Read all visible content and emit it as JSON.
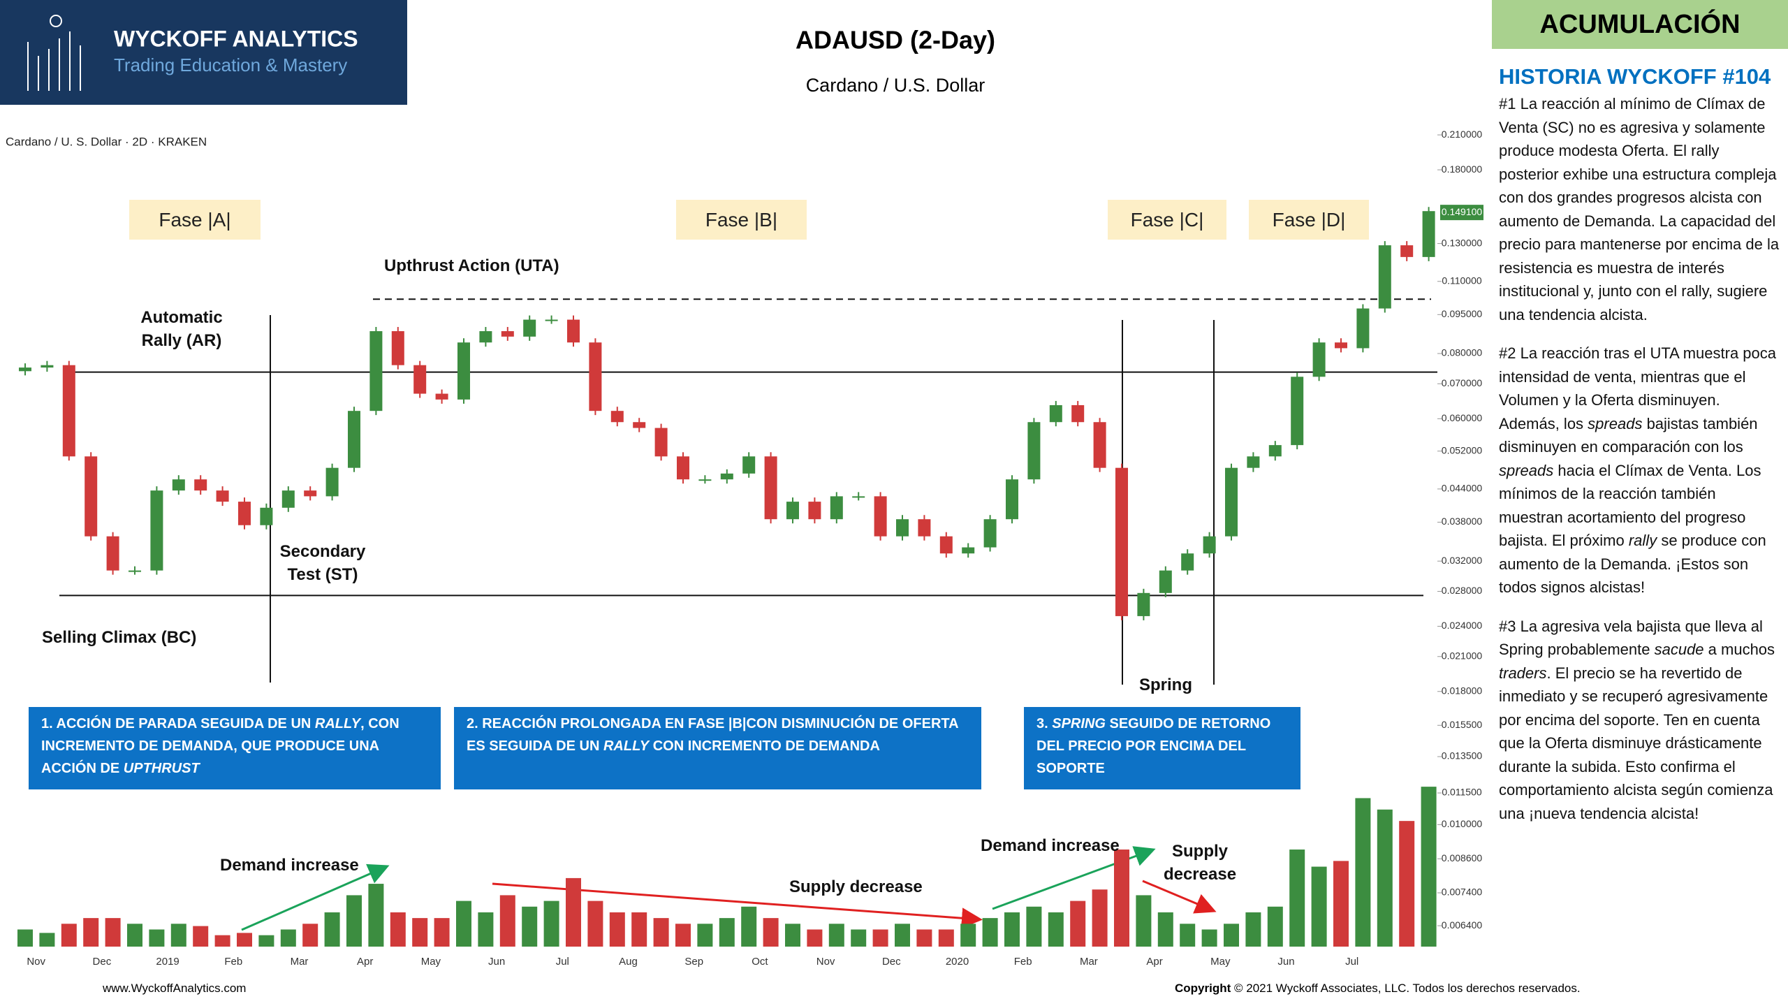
{
  "header": {
    "brand": "WYCKOFF ANALYTICS",
    "tagline": "Trading Education & Mastery",
    "title": "ADAUSD (2-Day)",
    "subtitle": "Cardano / U.S. Dollar"
  },
  "chart_data": {
    "type": "candlestick",
    "symbol_label": "Cardano / U. S. Dollar · 2D · KRAKEN",
    "log_scale": true,
    "grid": false,
    "up_color": "#3c8d40",
    "down_color": "#d03a3a",
    "categories": [
      null,
      "Nov",
      null,
      null,
      "Dec",
      null,
      null,
      "2019",
      null,
      null,
      "Feb",
      null,
      null,
      "Mar",
      null,
      null,
      "Apr",
      null,
      null,
      "May",
      null,
      null,
      "Jun",
      null,
      null,
      "Jul",
      null,
      null,
      "Aug",
      null,
      null,
      "Sep",
      null,
      null,
      "Oct",
      null,
      null,
      "Nov",
      null,
      null,
      "Dec",
      null,
      null,
      "2020",
      null,
      null,
      "Feb",
      null,
      null,
      "Mar",
      null,
      null,
      "Apr",
      null,
      null,
      "May",
      null,
      null,
      "Jun",
      null,
      null,
      "Jul",
      null,
      null,
      null
    ],
    "open": [
      0.074,
      0.0752,
      0.076,
      0.0508,
      0.0357,
      0.0307,
      0.0307,
      0.0437,
      0.0459,
      0.0437,
      0.0416,
      0.0375,
      0.0405,
      0.0437,
      0.0426,
      0.0483,
      0.0621,
      0.0883,
      0.076,
      0.067,
      0.0653,
      0.084,
      0.0883,
      0.0862,
      0.0929,
      0.0929,
      0.084,
      0.0621,
      0.0591,
      0.0576,
      0.0508,
      0.0459,
      0.0459,
      0.0471,
      0.0508,
      0.0385,
      0.0416,
      0.0385,
      0.0426,
      0.0426,
      0.0357,
      0.0385,
      0.0357,
      0.0331,
      0.034,
      0.0385,
      0.0459,
      0.0591,
      0.0637,
      0.0591,
      0.0483,
      0.0251,
      0.0278,
      0.0307,
      0.0331,
      0.0357,
      0.0483,
      0.0508,
      0.0534,
      0.0722,
      0.084,
      0.0819,
      0.0976,
      0.129,
      0.1225
    ],
    "close": [
      0.0752,
      0.076,
      0.0508,
      0.0357,
      0.0307,
      0.0307,
      0.0437,
      0.0459,
      0.0437,
      0.0416,
      0.0375,
      0.0405,
      0.0437,
      0.0426,
      0.0483,
      0.0621,
      0.0883,
      0.076,
      0.067,
      0.0653,
      0.084,
      0.0883,
      0.0862,
      0.0929,
      0.0929,
      0.084,
      0.0621,
      0.0591,
      0.0576,
      0.0508,
      0.0459,
      0.0459,
      0.0471,
      0.0508,
      0.0385,
      0.0416,
      0.0385,
      0.0426,
      0.0426,
      0.0357,
      0.0385,
      0.0357,
      0.0331,
      0.034,
      0.0385,
      0.0459,
      0.0591,
      0.0637,
      0.0591,
      0.0483,
      0.0251,
      0.0278,
      0.0307,
      0.0331,
      0.0357,
      0.0483,
      0.0508,
      0.0534,
      0.0722,
      0.084,
      0.0819,
      0.0976,
      0.129,
      0.1225,
      0.15
    ],
    "volume": [
      15,
      12,
      20,
      25,
      25,
      20,
      15,
      20,
      18,
      10,
      12,
      10,
      15,
      20,
      30,
      45,
      55,
      30,
      25,
      25,
      40,
      30,
      45,
      35,
      40,
      60,
      40,
      30,
      30,
      25,
      20,
      20,
      25,
      35,
      25,
      20,
      15,
      20,
      15,
      15,
      20,
      15,
      15,
      20,
      25,
      30,
      35,
      30,
      40,
      50,
      85,
      45,
      30,
      20,
      15,
      20,
      30,
      35,
      85,
      70,
      75,
      130,
      120,
      110,
      140
    ],
    "volume_ylim": [
      0,
      200
    ],
    "ylim": [
      0.0058,
      0.22
    ],
    "yticks": [
      {
        "value": 0.21,
        "label": "0.210000"
      },
      {
        "value": 0.18,
        "label": "0.180000"
      },
      {
        "value": 0.13,
        "label": "0.130000"
      },
      {
        "value": 0.11,
        "label": "0.110000"
      },
      {
        "value": 0.095,
        "label": "0.095000"
      },
      {
        "value": 0.08,
        "label": "0.080000"
      },
      {
        "value": 0.07,
        "label": "0.070000"
      },
      {
        "value": 0.06,
        "label": "0.060000"
      },
      {
        "value": 0.052,
        "label": "0.052000"
      },
      {
        "value": 0.044,
        "label": "0.044000"
      },
      {
        "value": 0.038,
        "label": "0.038000"
      },
      {
        "value": 0.032,
        "label": "0.032000"
      },
      {
        "value": 0.028,
        "label": "0.028000"
      },
      {
        "value": 0.024,
        "label": "0.024000"
      },
      {
        "value": 0.021,
        "label": "0.021000"
      },
      {
        "value": 0.018,
        "label": "0.018000"
      },
      {
        "value": 0.0155,
        "label": "0.015500"
      },
      {
        "value": 0.0135,
        "label": "0.013500"
      },
      {
        "value": 0.0115,
        "label": "0.011500"
      },
      {
        "value": 0.01,
        "label": "0.010000"
      },
      {
        "value": 0.0086,
        "label": "0.008600"
      },
      {
        "value": 0.0074,
        "label": "0.007400"
      },
      {
        "value": 0.0064,
        "label": "0.006400"
      }
    ],
    "last_price": {
      "value": 0.1491,
      "label": "0.149100"
    },
    "levels": [
      0.0737,
      0.0275,
      0.1017
    ],
    "phases": [
      "Fase |A|",
      "Fase |B|",
      "Fase |C|",
      "Fase |D|"
    ],
    "annotations": [
      "Upthrust Action (UTA)",
      "Automatic Rally (AR)",
      "Secondary Test (ST)",
      "Selling Climax (BC)",
      "Spring",
      "Demand increase",
      "Supply decrease",
      "Demand increase",
      "Supply decrease"
    ],
    "boxes": [
      [
        "1. ACCIÓN DE PARADA SEGUIDA DE UN ",
        "RALLY",
        ", CON INCREMENTO DE DEMANDA, QUE PRODUCE UNA ACCIÓN DE ",
        "UPTHRUST"
      ],
      [
        "2. REACCIÓN PROLONGADA EN FASE |B|CON DISMINUCIÓN DE OFERTA ES SEGUIDA DE UN ",
        "RALLY",
        " CON INCREMENTO DE DEMANDA"
      ],
      [
        "3. ",
        "SPRING",
        " SEGUIDO DE RETORNO DEL PRECIO POR ENCIMA DEL SOPORTE"
      ]
    ]
  },
  "sidebar": {
    "badge": "ACUMULACIÓN",
    "heading": "HISTORIA WYCKOFF #104",
    "paragraphs": [
      [
        "#1 La reacción al mínimo de Clímax de Venta (SC) no es agresiva y solamente produce modesta Oferta. El rally posterior exhibe una estructura compleja con dos grandes progresos alcista con aumento de Demanda. La capacidad del precio para mantenerse por encima de la resistencia es muestra de interés institucional y, junto con el rally, sugiere una tendencia alcista."
      ],
      [
        "#2 La reacción tras el UTA muestra poca intensidad de venta, mientras que el Volumen y la Oferta disminuyen. Además, los ",
        "spreads",
        " bajistas también disminuyen en comparación con los ",
        "spreads",
        " hacia el  Clímax de Venta. Los mínimos de la reacción también muestran acortamiento del progreso bajista. El próximo ",
        "rally",
        " se produce con aumento de la Demanda. ¡Estos son todos signos alcistas!"
      ],
      [
        "#3 La agresiva vela bajista que lleva al Spring probablemente ",
        "sacude",
        " a muchos ",
        "traders",
        ". El precio se ha revertido de inmediato y se recuperó agresivamente por encima del soporte. Ten en cuenta que la Oferta disminuye drásticamente durante la subida. Esto confirma el comportamiento alcista según comienza una ¡nueva tendencia alcista!"
      ]
    ]
  },
  "footer": {
    "website": "www.WyckoffAnalytics.com",
    "copyright_label": "Copyright",
    "copyright_text": "© 2021 Wyckoff Associates, LLC. Todos los derechos reservados."
  }
}
